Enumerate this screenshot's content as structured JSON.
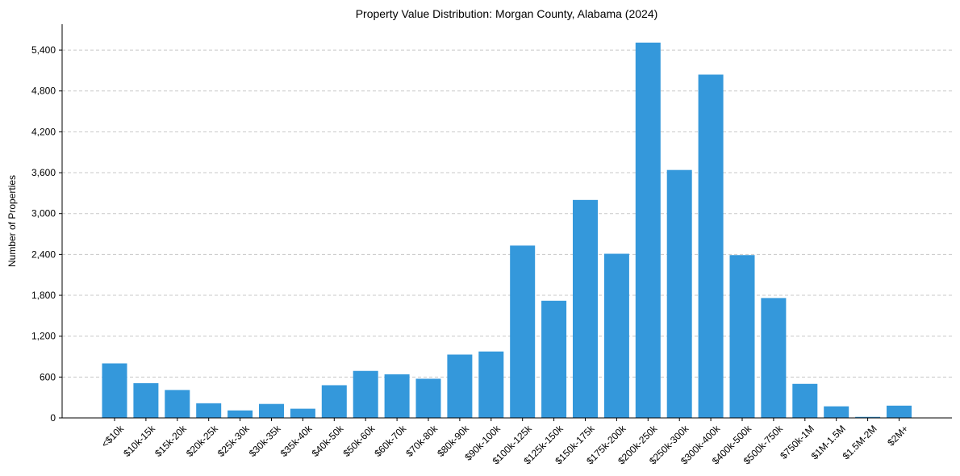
{
  "chart_data": {
    "type": "bar",
    "title": "Property Value Distribution: Morgan County, Alabama (2024)",
    "xlabel": "",
    "ylabel": "Number of Properties",
    "categories": [
      "<$10k",
      "$10k-15k",
      "$15k-20k",
      "$20k-25k",
      "$25k-30k",
      "$30k-35k",
      "$35k-40k",
      "$40k-50k",
      "$50k-60k",
      "$60k-70k",
      "$70k-80k",
      "$80k-90k",
      "$90k-100k",
      "$100k-125k",
      "$125k-150k",
      "$150k-175k",
      "$175k-200k",
      "$200k-250k",
      "$250k-300k",
      "$300k-400k",
      "$400k-500k",
      "$500k-750k",
      "$750k-1M",
      "$1M-1.5M",
      "$1.5M-2M",
      "$2M+"
    ],
    "values": [
      800,
      510,
      410,
      215,
      110,
      205,
      135,
      480,
      690,
      640,
      575,
      930,
      975,
      2530,
      1720,
      3200,
      2410,
      5510,
      3640,
      5040,
      2390,
      1760,
      500,
      170,
      15,
      180
    ],
    "ylim": [
      0,
      5780
    ],
    "yticks": [
      0,
      600,
      1200,
      1800,
      2400,
      3000,
      3600,
      4200,
      4800,
      5400
    ],
    "ytick_labels": [
      "0",
      "600",
      "1,200",
      "1,800",
      "2,400",
      "3,000",
      "3,600",
      "4,200",
      "4,800",
      "5,400"
    ],
    "grid": "y-dashed",
    "colors": {
      "bar": "#3498db",
      "grid": "#c8c8c8",
      "axis": "#000000"
    }
  }
}
